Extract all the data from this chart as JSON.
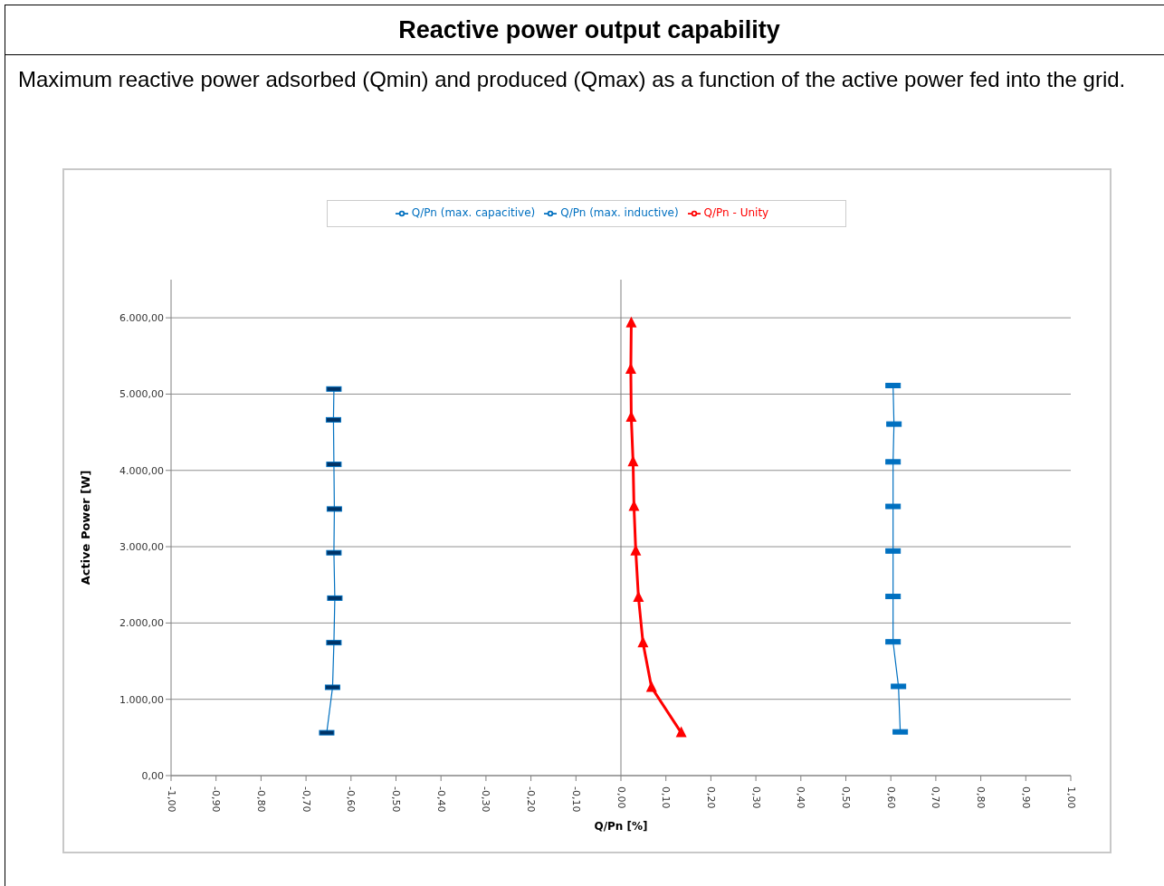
{
  "chart_data": {
    "type": "line",
    "title": "Reactive power output capability",
    "subtitle": "Maximum reactive power adsorbed (Qmin) and produced (Qmax) as a function of the active power fed into the grid.",
    "xlabel": "Q/Pn [%]",
    "ylabel": "Active Power [W]",
    "xlim": [
      -1,
      1
    ],
    "xticks": [
      {
        "value": -1,
        "label": "-1,00"
      },
      {
        "value": -0.9,
        "label": "-0,90"
      },
      {
        "value": -0.8,
        "label": "-0,80"
      },
      {
        "value": -0.7,
        "label": "-0,70"
      },
      {
        "value": -0.6,
        "label": "-0,60"
      },
      {
        "value": -0.5,
        "label": "-0,50"
      },
      {
        "value": -0.4,
        "label": "-0,40"
      },
      {
        "value": -0.3,
        "label": "-0,30"
      },
      {
        "value": -0.2,
        "label": "-0,20"
      },
      {
        "value": -0.1,
        "label": "-0,10"
      },
      {
        "value": 0,
        "label": "0,00"
      },
      {
        "value": 0.1,
        "label": "0,10"
      },
      {
        "value": 0.2,
        "label": "0,20"
      },
      {
        "value": 0.3,
        "label": "0,30"
      },
      {
        "value": 0.4,
        "label": "0,40"
      },
      {
        "value": 0.5,
        "label": "0,50"
      },
      {
        "value": 0.6,
        "label": "0,60"
      },
      {
        "value": 0.7,
        "label": "0,70"
      },
      {
        "value": 0.8,
        "label": "0,80"
      },
      {
        "value": 0.9,
        "label": "0,90"
      },
      {
        "value": 1,
        "label": "1,00"
      }
    ],
    "ylim": [
      0,
      6500
    ],
    "yticks": [
      {
        "value": 0,
        "label": "0,00"
      },
      {
        "value": 1000,
        "label": "1.000,00"
      },
      {
        "value": 2000,
        "label": "2.000,00"
      },
      {
        "value": 3000,
        "label": "3.000,00"
      },
      {
        "value": 4000,
        "label": "4.000,00"
      },
      {
        "value": 5000,
        "label": "5.000,00"
      },
      {
        "value": 6000,
        "label": "6.000,00"
      }
    ],
    "grid": "y",
    "legend": "top",
    "line_style": "solid",
    "ref_lines": [
      {
        "axis": "x",
        "value": 0,
        "color": "#808080"
      }
    ],
    "series": [
      {
        "name": "Q/Pn (max. capacitive)",
        "color": "#0070c0",
        "marker": "square",
        "x": [
          0.621,
          0.617,
          0.605,
          0.605,
          0.605,
          0.605,
          0.605,
          0.607,
          0.605
        ],
        "values": [
          573,
          1169,
          1753,
          2348,
          2944,
          3528,
          4112,
          4607,
          5112
        ]
      },
      {
        "name": "Q/Pn (max. inductive)",
        "color": "#0070c0",
        "marker": "square",
        "x": [
          -0.654,
          -0.641,
          -0.638,
          -0.636,
          -0.638,
          -0.637,
          -0.638,
          -0.639,
          -0.638
        ],
        "values": [
          562,
          1157,
          1742,
          2326,
          2921,
          3494,
          4079,
          4663,
          5067
        ]
      },
      {
        "name": "Q/Pn - Unity",
        "color": "#ff0000",
        "marker": "triangle",
        "x": [
          0.134,
          0.068,
          0.049,
          0.039,
          0.033,
          0.029,
          0.027,
          0.023,
          0.022,
          0.023
        ],
        "values": [
          562,
          1157,
          1742,
          2337,
          2944,
          3528,
          4112,
          4697,
          5326,
          5933
        ]
      }
    ]
  }
}
